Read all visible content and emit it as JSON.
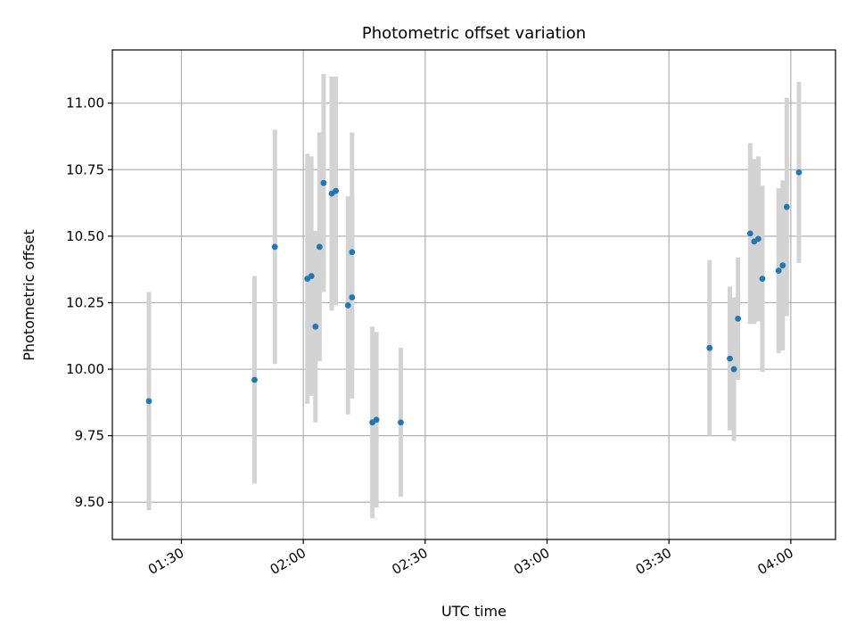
{
  "chart_data": {
    "type": "scatter",
    "title": "Photometric offset variation",
    "xlabel": "UTC time",
    "ylabel": "Photometric offset",
    "grid": true,
    "legend": "none",
    "xlim": [
      "01:13",
      "04:11"
    ],
    "ylim": [
      9.36,
      11.2
    ],
    "x_ticks": [
      "01:30",
      "02:00",
      "02:30",
      "03:00",
      "03:30",
      "04:00"
    ],
    "y_ticks": [
      "9.50",
      "9.75",
      "10.00",
      "10.25",
      "10.50",
      "10.75",
      "11.00"
    ],
    "colors": {
      "marker": "#1f77b4",
      "errorbar": "#d3d3d3",
      "grid": "#b0b0b0"
    },
    "series": [
      {
        "points": [
          {
            "x": "01:22",
            "y": 9.88,
            "err": 0.41
          },
          {
            "x": "01:48",
            "y": 9.96,
            "err": 0.39
          },
          {
            "x": "01:53",
            "y": 10.46,
            "err": 0.44
          },
          {
            "x": "02:01",
            "y": 10.34,
            "err": 0.47
          },
          {
            "x": "02:02",
            "y": 10.35,
            "err": 0.45
          },
          {
            "x": "02:03",
            "y": 10.16,
            "err": 0.36
          },
          {
            "x": "02:04",
            "y": 10.46,
            "err": 0.43
          },
          {
            "x": "02:05",
            "y": 10.7,
            "err": 0.41
          },
          {
            "x": "02:07",
            "y": 10.66,
            "err": 0.44
          },
          {
            "x": "02:08",
            "y": 10.67,
            "err": 0.43
          },
          {
            "x": "02:11",
            "y": 10.24,
            "err": 0.41
          },
          {
            "x": "02:12",
            "y": 10.44,
            "err": 0.45
          },
          {
            "x": "02:12",
            "y": 10.27,
            "err": 0.38
          },
          {
            "x": "02:17",
            "y": 9.8,
            "err": 0.36
          },
          {
            "x": "02:18",
            "y": 9.81,
            "err": 0.33
          },
          {
            "x": "02:24",
            "y": 9.8,
            "err": 0.28
          },
          {
            "x": "03:40",
            "y": 10.08,
            "err": 0.33
          },
          {
            "x": "03:45",
            "y": 10.04,
            "err": 0.27
          },
          {
            "x": "03:46",
            "y": 10.0,
            "err": 0.27
          },
          {
            "x": "03:47",
            "y": 10.19,
            "err": 0.23
          },
          {
            "x": "03:50",
            "y": 10.51,
            "err": 0.34
          },
          {
            "x": "03:51",
            "y": 10.48,
            "err": 0.31
          },
          {
            "x": "03:52",
            "y": 10.49,
            "err": 0.31
          },
          {
            "x": "03:53",
            "y": 10.34,
            "err": 0.35
          },
          {
            "x": "03:57",
            "y": 10.37,
            "err": 0.31
          },
          {
            "x": "03:58",
            "y": 10.39,
            "err": 0.32
          },
          {
            "x": "03:59",
            "y": 10.61,
            "err": 0.41
          },
          {
            "x": "04:02",
            "y": 10.74,
            "err": 0.34
          }
        ]
      }
    ]
  }
}
